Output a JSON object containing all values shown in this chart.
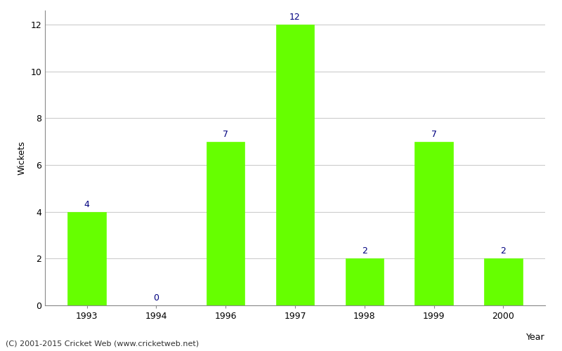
{
  "years": [
    1993,
    1994,
    1996,
    1997,
    1998,
    1999,
    2000
  ],
  "wickets": [
    4,
    0,
    7,
    12,
    2,
    7,
    2
  ],
  "bar_color": "#66ff00",
  "bar_edge_color": "#66ff00",
  "xlabel": "Year",
  "ylabel": "Wickets",
  "ylim": [
    0,
    12.6
  ],
  "yticks": [
    0,
    2,
    4,
    6,
    8,
    10,
    12
  ],
  "label_color": "#000080",
  "grid_color": "#cccccc",
  "footer": "(C) 2001-2015 Cricket Web (www.cricketweb.net)",
  "background_color": "#ffffff",
  "label_fontsize": 9,
  "axis_label_fontsize": 9,
  "tick_fontsize": 9
}
